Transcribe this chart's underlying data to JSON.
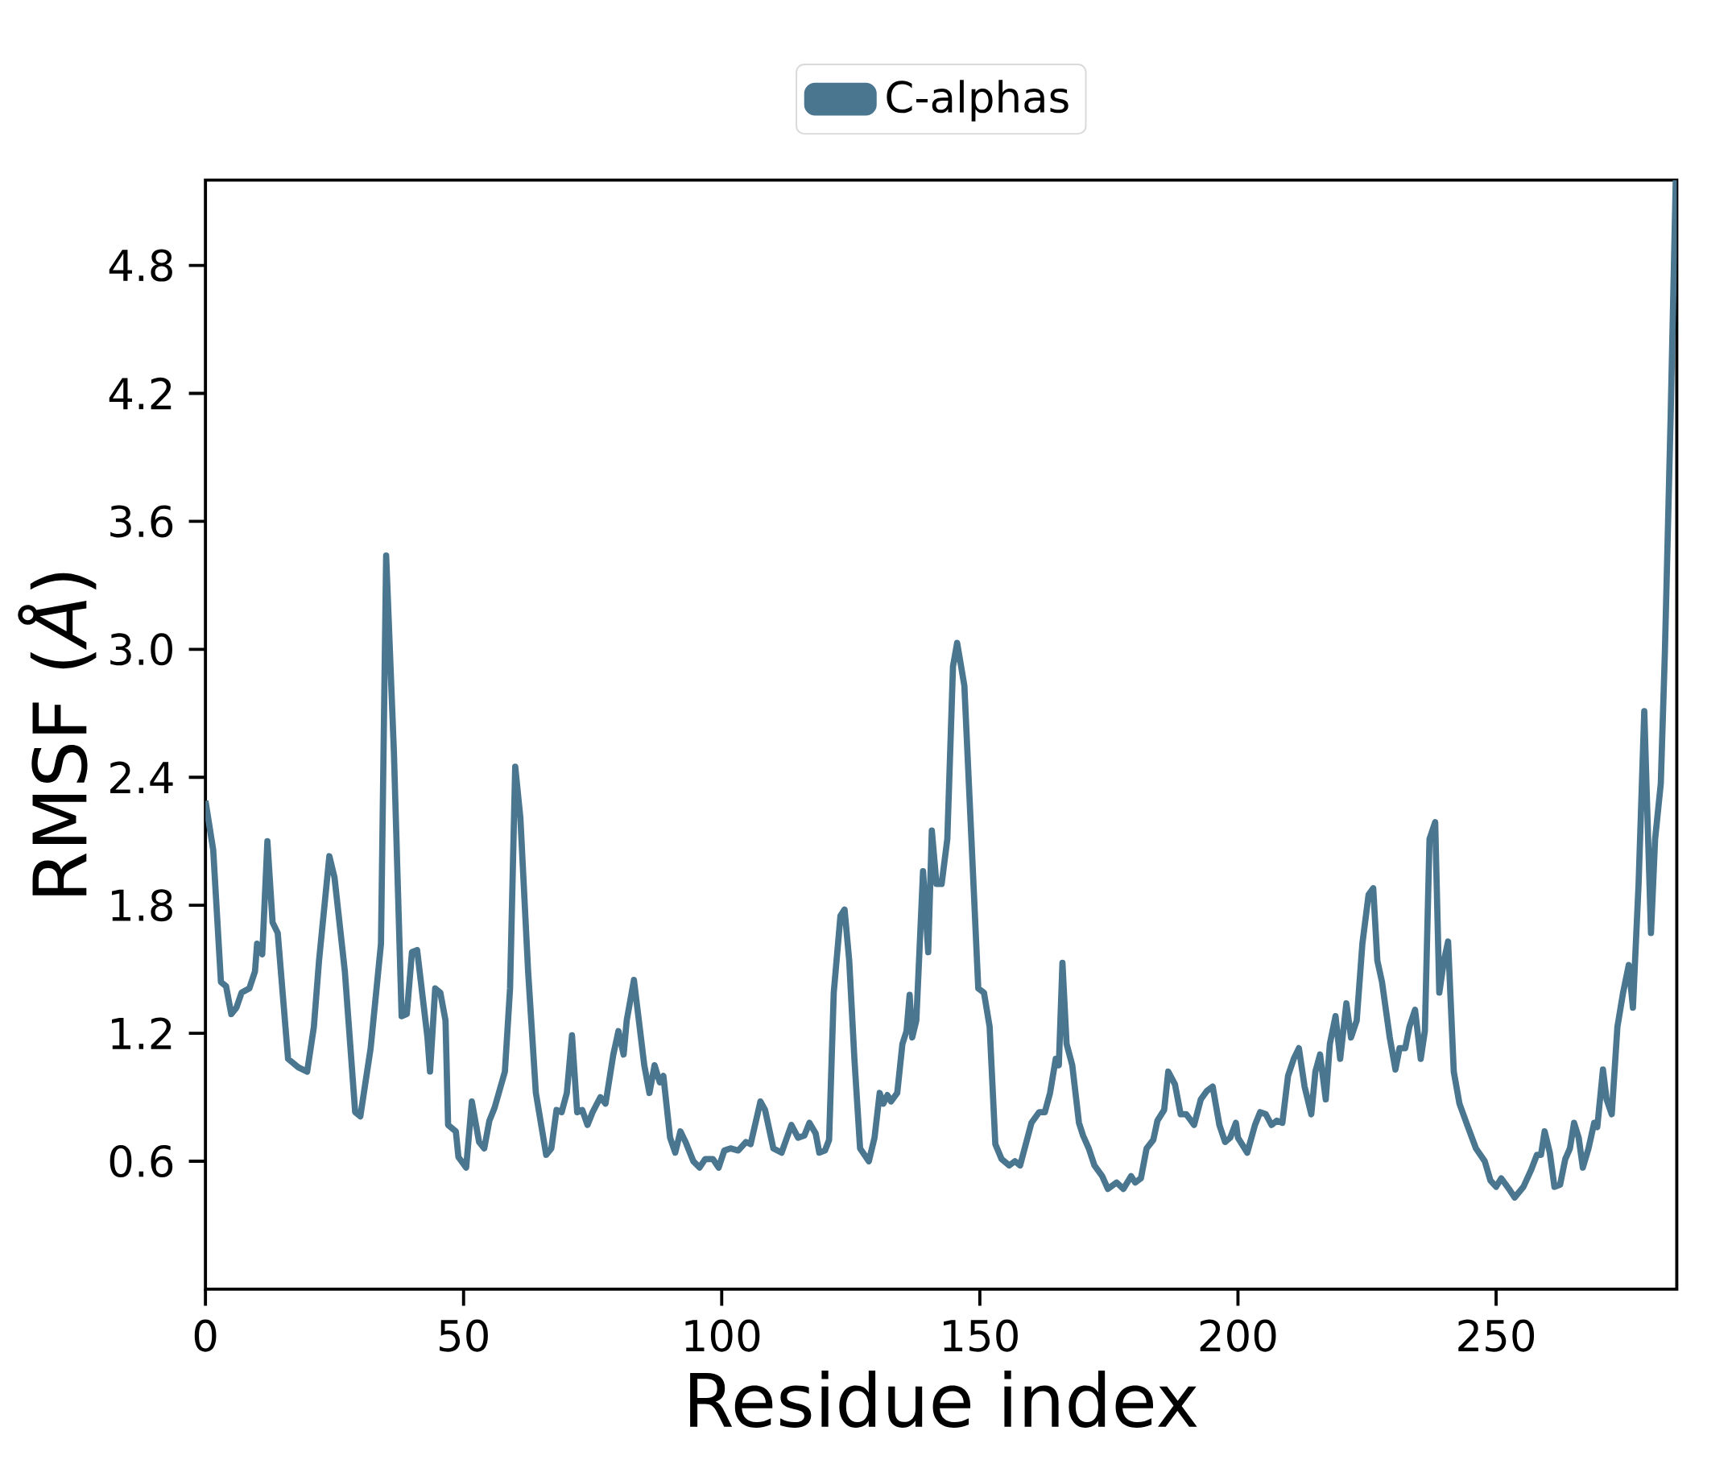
{
  "chart_data": {
    "type": "line",
    "xlabel": "Residue index",
    "ylabel": "RMSF (*Å*)",
    "legend": "top",
    "xlim": [
      0,
      285
    ],
    "ylim": [
      0,
      5.2
    ],
    "xticks": [
      0,
      50,
      100,
      150,
      200,
      250
    ],
    "yticks": [
      0.6,
      1.2,
      1.8,
      2.4,
      {
        "value": 3,
        "label": "3.0"
      },
      3.6,
      4.2,
      4.8
    ],
    "series": [
      {
        "name": "C-alphas",
        "color": "#4a7690",
        "x": [
          0,
          1.5,
          3,
          4,
          5,
          6,
          7,
          8.5,
          9.6,
          10,
          11,
          12,
          13,
          14,
          16,
          18,
          19.7,
          21,
          22,
          24,
          25,
          27,
          29,
          30,
          32,
          34,
          35,
          36.5,
          38,
          39,
          40,
          41,
          43,
          43.5,
          44.5,
          45.5,
          46.5,
          47,
          48.5,
          49,
          50.5,
          51.6,
          53,
          54,
          55,
          56,
          58,
          59,
          60,
          61,
          62.5,
          64,
          66,
          67,
          68,
          69,
          70,
          71,
          72,
          73,
          74,
          75,
          76.5,
          77.5,
          79,
          80,
          81,
          81.6,
          83,
          85,
          86,
          87,
          88,
          88.7,
          90,
          91,
          92,
          93,
          94.5,
          95.7,
          96.8,
          98.3,
          99.4,
          100.5,
          101.7,
          103.2,
          104.7,
          105.6,
          107.5,
          108.4,
          110,
          111.6,
          113.5,
          114.8,
          116,
          117,
          118.2,
          118.9,
          120,
          120.8,
          121.7,
          123,
          123.8,
          124.7,
          125.7,
          126.8,
          128.5,
          129.6,
          130.6,
          131.3,
          132.1,
          132.8,
          134,
          135,
          135.8,
          136.4,
          136.9,
          137.7,
          139,
          140,
          140.7,
          141.6,
          142.6,
          143.7,
          144.8,
          145.6,
          147,
          149.7,
          150.8,
          151.9,
          153,
          154.2,
          155.7,
          156.8,
          157.8,
          160,
          161.5,
          162.6,
          163.6,
          164.7,
          165.3,
          166,
          166.8,
          167.9,
          169.2,
          170,
          171.1,
          172.2,
          173.7,
          174.8,
          176.5,
          177.8,
          179.3,
          180.1,
          181.2,
          182.3,
          183.6,
          184.4,
          185.7,
          186.5,
          187.8,
          188.9,
          190,
          191.5,
          192.8,
          194,
          195.1,
          196.4,
          197.5,
          198.5,
          199.6,
          200,
          201.8,
          203.3,
          204.3,
          205.4,
          206.5,
          207.5,
          208.6,
          209.7,
          210.8,
          211.8,
          212.9,
          214.2,
          215,
          215.9,
          217,
          217.8,
          218.9,
          219.8,
          221,
          221.9,
          223,
          224.1,
          225.3,
          226.2,
          227,
          227.9,
          229.4,
          230.5,
          231.3,
          232.4,
          233.2,
          234.3,
          235.4,
          236.2,
          237.1,
          238.2,
          239,
          239.9,
          240.7,
          241.8,
          242.9,
          244.4,
          246.1,
          247.8,
          248.9,
          250,
          251,
          252.5,
          253.6,
          255.3,
          256.8,
          257.9,
          258.7,
          259.4,
          260.4,
          261.3,
          262.4,
          263.4,
          264.3,
          265.1,
          266,
          266.8,
          267.9,
          269,
          269.6,
          270.7,
          271.4,
          272.4,
          273.5,
          274.6,
          275.7,
          276.5,
          277.6,
          278.7,
          280,
          280.8,
          281.9,
          282.7,
          283.8,
          284.8
        ],
        "values": [
          2.29,
          2.06,
          1.44,
          1.42,
          1.29,
          1.32,
          1.39,
          1.41,
          1.49,
          1.62,
          1.57,
          2.1,
          1.72,
          1.67,
          1.08,
          1.04,
          1.02,
          1.23,
          1.54,
          2.03,
          1.93,
          1.49,
          0.83,
          0.81,
          1.13,
          1.62,
          3.44,
          2.52,
          1.28,
          1.29,
          1.58,
          1.59,
          1.18,
          1.02,
          1.41,
          1.39,
          1.26,
          0.77,
          0.74,
          0.62,
          0.57,
          0.88,
          0.69,
          0.66,
          0.79,
          0.85,
          1.02,
          1.41,
          2.45,
          2.21,
          1.49,
          0.92,
          0.63,
          0.66,
          0.84,
          0.83,
          0.92,
          1.19,
          0.83,
          0.84,
          0.77,
          0.83,
          0.9,
          0.87,
          1.1,
          1.21,
          1.1,
          1.26,
          1.45,
          1.05,
          0.92,
          1.05,
          0.97,
          1.0,
          0.71,
          0.64,
          0.74,
          0.69,
          0.6,
          0.57,
          0.61,
          0.61,
          0.57,
          0.65,
          0.66,
          0.65,
          0.69,
          0.68,
          0.88,
          0.84,
          0.66,
          0.64,
          0.77,
          0.71,
          0.72,
          0.78,
          0.73,
          0.64,
          0.65,
          0.7,
          1.39,
          1.75,
          1.78,
          1.54,
          1.08,
          0.66,
          0.6,
          0.71,
          0.92,
          0.87,
          0.91,
          0.88,
          0.92,
          1.15,
          1.21,
          1.38,
          1.18,
          1.26,
          1.96,
          1.58,
          2.15,
          1.9,
          1.9,
          2.11,
          2.92,
          3.03,
          2.83,
          1.41,
          1.39,
          1.23,
          0.68,
          0.61,
          0.58,
          0.6,
          0.58,
          0.78,
          0.83,
          0.83,
          0.92,
          1.08,
          1.05,
          1.53,
          1.15,
          1.05,
          0.78,
          0.72,
          0.66,
          0.58,
          0.53,
          0.47,
          0.5,
          0.47,
          0.53,
          0.5,
          0.52,
          0.66,
          0.7,
          0.79,
          0.84,
          1.02,
          0.96,
          0.82,
          0.82,
          0.77,
          0.89,
          0.93,
          0.95,
          0.77,
          0.69,
          0.71,
          0.78,
          0.71,
          0.64,
          0.77,
          0.83,
          0.82,
          0.77,
          0.79,
          0.78,
          1.0,
          1.08,
          1.13,
          0.95,
          0.82,
          1.02,
          1.1,
          0.89,
          1.15,
          1.28,
          1.08,
          1.34,
          1.18,
          1.26,
          1.62,
          1.85,
          1.88,
          1.54,
          1.44,
          1.18,
          1.03,
          1.13,
          1.13,
          1.23,
          1.31,
          1.08,
          1.21,
          2.11,
          2.19,
          1.39,
          1.54,
          1.63,
          1.02,
          0.87,
          0.77,
          0.66,
          0.6,
          0.51,
          0.48,
          0.52,
          0.47,
          0.43,
          0.48,
          0.56,
          0.63,
          0.63,
          0.74,
          0.64,
          0.48,
          0.49,
          0.61,
          0.66,
          0.78,
          0.71,
          0.57,
          0.66,
          0.78,
          0.76,
          1.03,
          0.89,
          0.82,
          1.23,
          1.39,
          1.52,
          1.32,
          1.9,
          2.71,
          1.67,
          2.11,
          2.37,
          2.99,
          4.08,
          5.2
        ]
      }
    ]
  }
}
